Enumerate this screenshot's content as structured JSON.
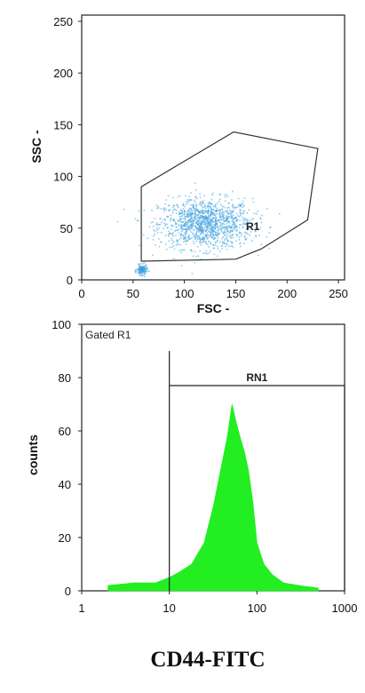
{
  "figure_caption": "CD44-FITC",
  "chart_data": [
    {
      "type": "scatter",
      "xlabel": "FSC -",
      "ylabel": "SSC -",
      "xlim": [
        0,
        256
      ],
      "ylim": [
        0,
        256
      ],
      "xticks": [
        0,
        50,
        100,
        150,
        200,
        250
      ],
      "yticks": [
        0,
        50,
        100,
        150,
        200,
        250
      ],
      "point_color": "#3a9fdc",
      "gate": {
        "name": "R1",
        "polygon": [
          [
            58,
            18
          ],
          [
            58,
            90
          ],
          [
            148,
            143
          ],
          [
            230,
            127
          ],
          [
            220,
            58
          ],
          [
            175,
            30
          ],
          [
            150,
            20
          ],
          [
            58,
            18
          ]
        ]
      },
      "clusters": [
        {
          "center": [
            120,
            55
          ],
          "spread": [
            38,
            20
          ],
          "weight": 0.9
        },
        {
          "center": [
            58,
            10
          ],
          "spread": [
            4,
            4
          ],
          "weight": 0.1
        }
      ]
    },
    {
      "type": "area",
      "gate_note": "Gated R1",
      "ylabel": "counts",
      "xscale": "log",
      "xlim": [
        1,
        1000
      ],
      "ylim": [
        0,
        100
      ],
      "xticks": [
        1,
        10,
        100,
        1000
      ],
      "yticks": [
        0,
        20,
        40,
        60,
        80,
        100
      ],
      "fill_color": "#22ee22",
      "marker": {
        "name": "RN1",
        "x_start": 10,
        "x_end": 1000,
        "y": 77
      },
      "x": [
        2,
        4,
        7,
        10,
        13,
        18,
        25,
        32,
        40,
        46,
        52,
        58,
        65,
        72,
        80,
        90,
        100,
        120,
        150,
        200,
        300,
        500
      ],
      "y": [
        2,
        3,
        3,
        5,
        7,
        10,
        18,
        32,
        48,
        58,
        70,
        63,
        57,
        52,
        45,
        33,
        18,
        10,
        6,
        3,
        2,
        1
      ]
    }
  ]
}
